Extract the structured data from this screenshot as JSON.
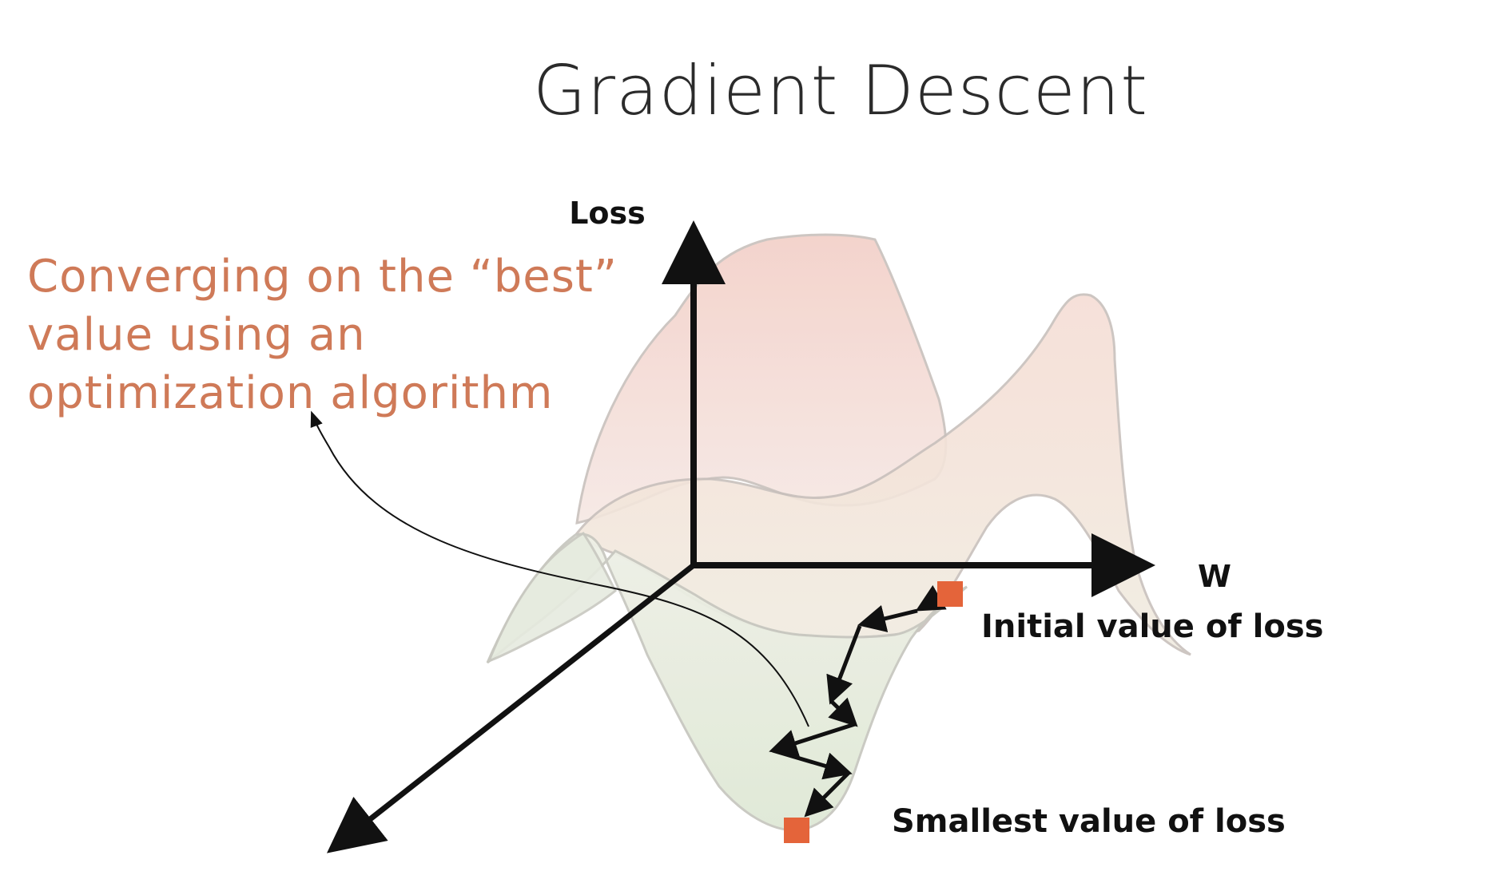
{
  "slide": {
    "title": "Gradient Descent",
    "callout_lines": [
      "Converging on the “best”",
      "value using an",
      "optimization algorithm"
    ]
  },
  "axes": {
    "y_label": "Loss",
    "x_label": "W"
  },
  "points": {
    "initial_label": "Initial value of loss",
    "smallest_label": "Smallest value of loss"
  },
  "colors": {
    "callout": "#cf7a58",
    "marker": "#e4643a",
    "axis": "#111111"
  }
}
